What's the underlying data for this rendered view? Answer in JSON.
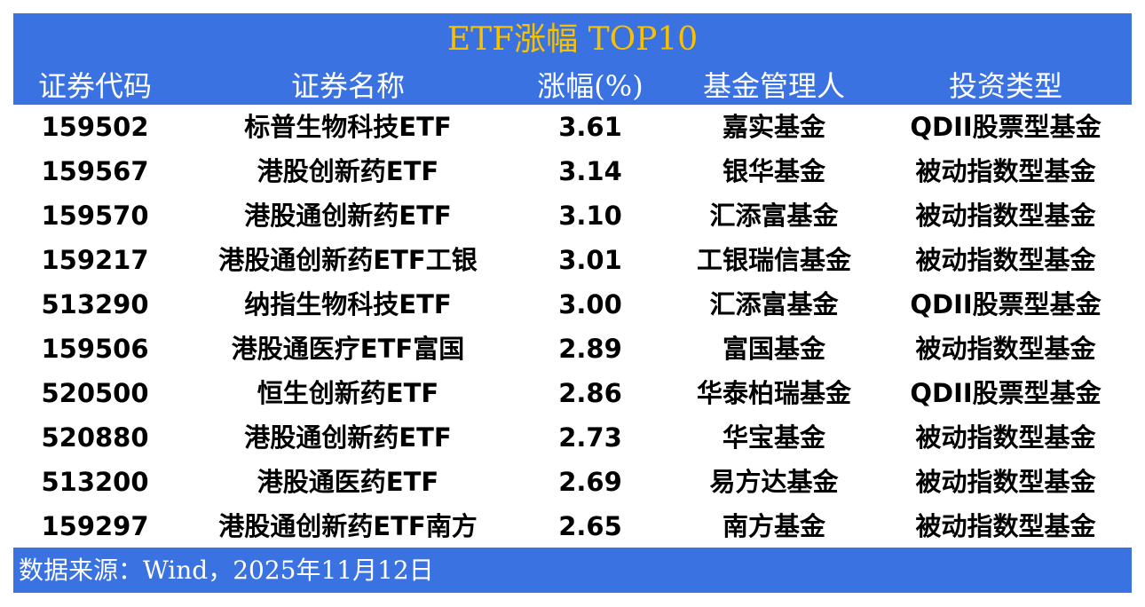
{
  "title": "ETF涨幅 TOP10",
  "headers": [
    "证券代码",
    "证券名称",
    "涨幅(%)",
    "基金管理人",
    "投资类型"
  ],
  "rows": [
    [
      "159502",
      "标普生物科技ETF",
      "3.61",
      "嘉实基金",
      "QDII股票型基金"
    ],
    [
      "159567",
      "港股创新药ETF",
      "3.14",
      "银华基金",
      "被动指数型基金"
    ],
    [
      "159570",
      "港股通创新药ETF",
      "3.10",
      "汇添富基金",
      "被动指数型基金"
    ],
    [
      "159217",
      "港股通创新药ETF工银",
      "3.01",
      "工银瑞信基金",
      "被动指数型基金"
    ],
    [
      "513290",
      "纳指生物科技ETF",
      "3.00",
      "汇添富基金",
      "QDII股票型基金"
    ],
    [
      "159506",
      "港股通医疗ETF富国",
      "2.89",
      "富国基金",
      "被动指数型基金"
    ],
    [
      "520500",
      "恒生创新药ETF",
      "2.86",
      "华泰柏瑞基金",
      "QDII股票型基金"
    ],
    [
      "520880",
      "港股通创新药ETF",
      "2.73",
      "华宝基金",
      "被动指数型基金"
    ],
    [
      "513200",
      "港股通医药ETF",
      "2.69",
      "易方达基金",
      "被动指数型基金"
    ],
    [
      "159297",
      "港股通创新药ETF南方",
      "2.65",
      "南方基金",
      "被动指数型基金"
    ]
  ],
  "footer": "数据来源：Wind，2025年11月12日",
  "colors": {
    "header_bg": "#3a72e2",
    "title": "#f7c100"
  }
}
